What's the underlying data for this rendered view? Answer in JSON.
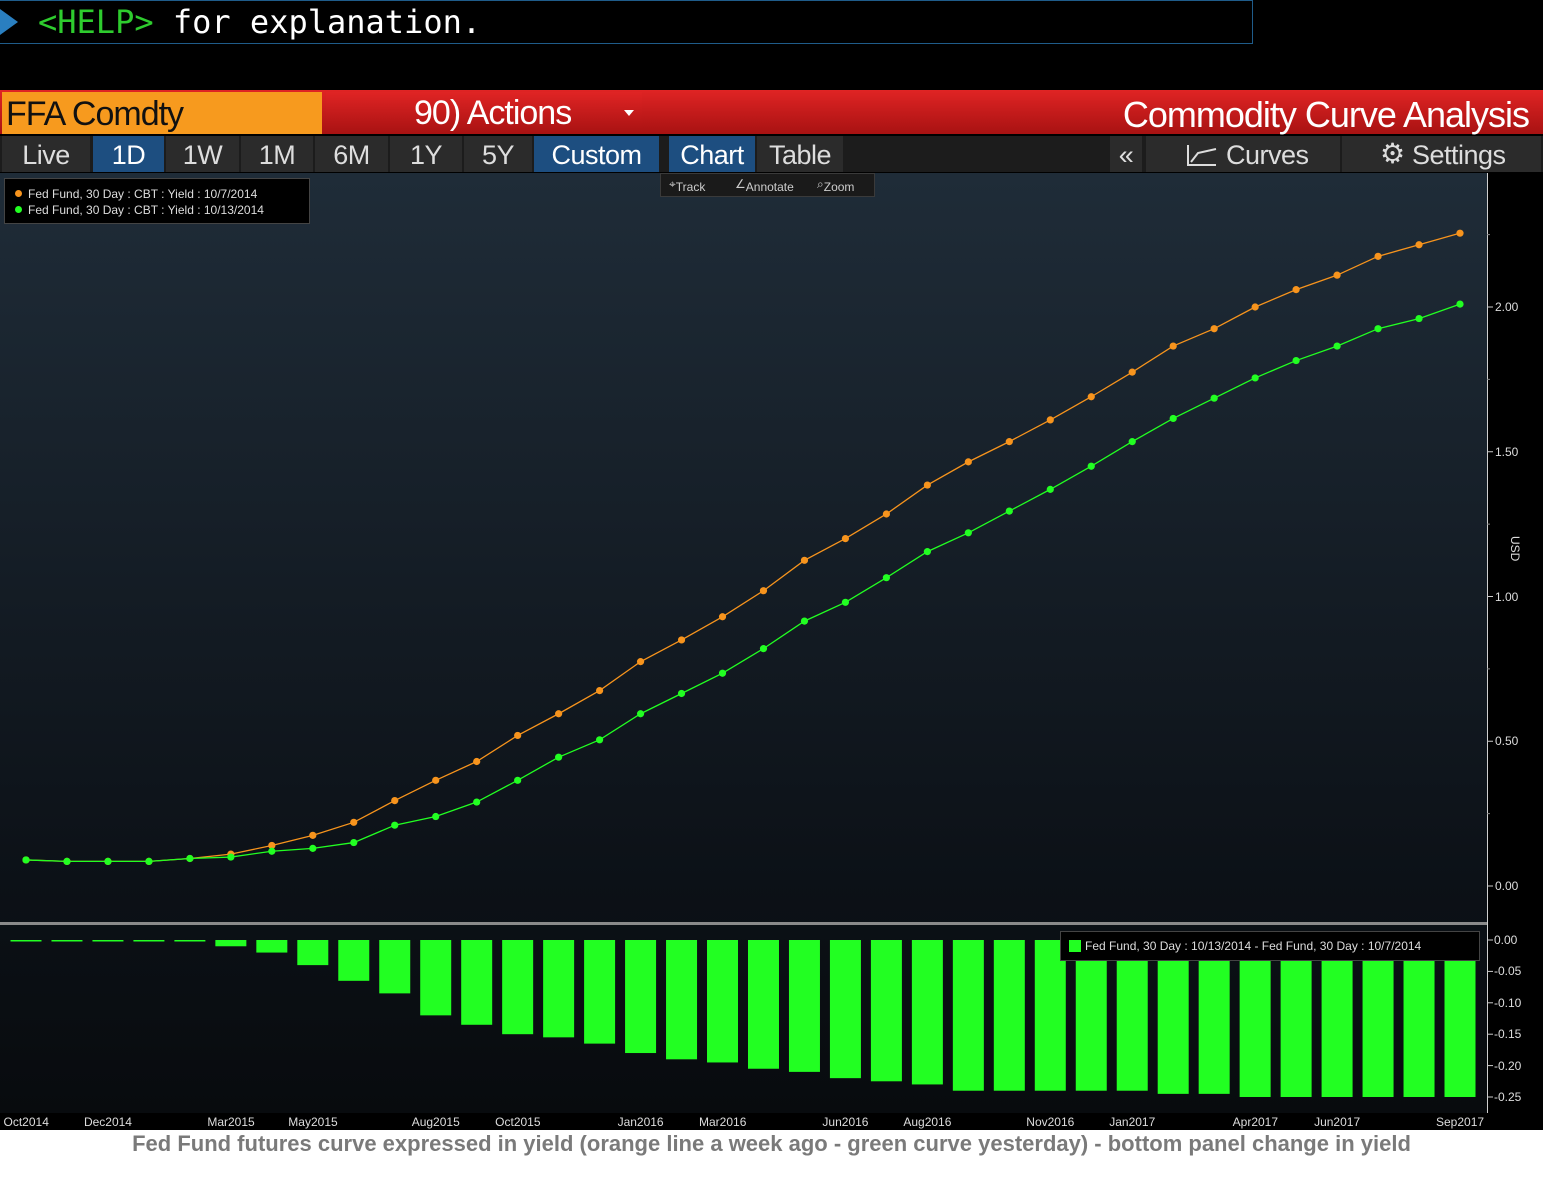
{
  "command": {
    "help": "<HELP>",
    "text": " for explanation."
  },
  "header": {
    "ticker": "FFA Comdty",
    "actions": "90) Actions",
    "title": "Commodity Curve Analysis"
  },
  "tabs": [
    {
      "label": "Live"
    },
    {
      "label": "1D"
    },
    {
      "label": "1W"
    },
    {
      "label": "1M"
    },
    {
      "label": "6M"
    },
    {
      "label": "1Y"
    },
    {
      "label": "5Y"
    },
    {
      "label": "Custom"
    },
    {
      "label": "Chart"
    },
    {
      "label": "Table"
    },
    {
      "label": "«"
    },
    {
      "label": "Curves"
    },
    {
      "label": "Settings"
    }
  ],
  "tools": {
    "track": "Track",
    "annotate": "Annotate",
    "zoom": "Zoom"
  },
  "legend": {
    "s1": "Fed Fund, 30 Day : CBT : Yield : 10/7/2014",
    "s2": "Fed Fund, 30 Day : CBT : Yield : 10/13/2014"
  },
  "legend2": "Fed Fund, 30 Day : 10/13/2014 - Fed Fund, 30 Day : 10/7/2014",
  "y_unit": "USD",
  "caption": "Fed Fund futures curve expressed in yield (orange line a week ago - green curve yesterday) - bottom panel change in yield",
  "colors": {
    "orange": "#f7941d",
    "green": "#22ff22",
    "red": "#c41a1a",
    "blue": "#1d4e80"
  },
  "chart_data": [
    {
      "type": "line",
      "x_tick_labels": [
        "Oct2014",
        "Dec2014",
        "Mar2015",
        "May2015",
        "Aug2015",
        "Oct2015",
        "Jan2016",
        "Mar2016",
        "Jun2016",
        "Aug2016",
        "Nov2016",
        "Jan2017",
        "Apr2017",
        "Jun2017",
        "Sep2017"
      ],
      "y_ticks": [
        "0.00",
        "0.50",
        "1.00",
        "1.50",
        "2.00"
      ],
      "ylim": [
        -0.03,
        2.4
      ],
      "ylabel": "USD",
      "series": [
        {
          "name": "Fed Fund, 30 Day : CBT : Yield : 10/7/2014",
          "color": "#f7941d",
          "values": [
            0.09,
            0.085,
            0.085,
            0.085,
            0.095,
            0.11,
            0.14,
            0.175,
            0.22,
            0.295,
            0.365,
            0.43,
            0.52,
            0.595,
            0.675,
            0.775,
            0.85,
            0.93,
            1.02,
            1.125,
            1.2,
            1.285,
            1.385,
            1.465,
            1.535,
            1.61,
            1.69,
            1.775,
            1.865,
            1.925,
            2.0,
            2.06,
            2.11,
            2.175,
            2.215,
            2.255
          ]
        },
        {
          "name": "Fed Fund, 30 Day : CBT : Yield : 10/13/2014",
          "color": "#22ff22",
          "values": [
            0.09,
            0.085,
            0.085,
            0.085,
            0.095,
            0.1,
            0.12,
            0.13,
            0.15,
            0.21,
            0.24,
            0.29,
            0.365,
            0.445,
            0.505,
            0.595,
            0.665,
            0.735,
            0.82,
            0.915,
            0.98,
            1.065,
            1.155,
            1.22,
            1.295,
            1.37,
            1.45,
            1.535,
            1.615,
            1.685,
            1.755,
            1.815,
            1.865,
            1.925,
            1.96,
            2.01
          ]
        }
      ]
    },
    {
      "type": "bar",
      "y_ticks": [
        "0.00",
        "-0.05",
        "-0.10",
        "-0.15",
        "-0.20",
        "-0.25"
      ],
      "ylim": [
        -0.27,
        0.005
      ],
      "series": [
        {
          "name": "Fed Fund, 30 Day : 10/13/2014 - Fed Fund, 30 Day : 10/7/2014",
          "color": "#22ff22",
          "values": [
            0.0,
            0.0,
            0.0,
            0.0,
            0.0,
            -0.01,
            -0.02,
            -0.04,
            -0.065,
            -0.085,
            -0.12,
            -0.135,
            -0.15,
            -0.155,
            -0.165,
            -0.18,
            -0.19,
            -0.195,
            -0.205,
            -0.21,
            -0.22,
            -0.225,
            -0.23,
            -0.24,
            -0.24,
            -0.24,
            -0.24,
            -0.24,
            -0.245,
            -0.245,
            -0.25,
            -0.25,
            -0.25,
            -0.25,
            -0.25,
            -0.25
          ]
        }
      ]
    }
  ]
}
